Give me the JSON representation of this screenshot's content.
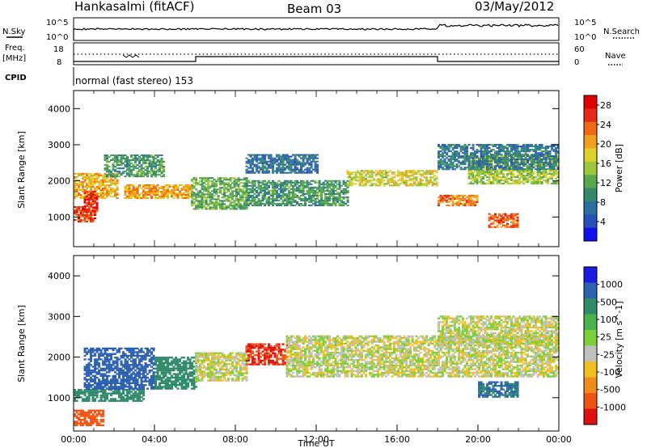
{
  "header": {
    "station": "Hankasalmi (fitACF)",
    "beam": "Beam 03",
    "date": "03/May/2012"
  },
  "status_panels": {
    "nsky_label": "N.Sky",
    "nsearch_label": "N.Search",
    "left_ticks": [
      "10^5",
      "10^0"
    ],
    "right_ticks": [
      "10^5",
      "10^0"
    ],
    "freq_label": "Freq.",
    "freq_unit": "[MHz]",
    "freq_ticks": [
      "18",
      "8"
    ],
    "nave_label": "Nave",
    "nave_ticks": [
      "60",
      "0"
    ],
    "cpid_label": "CPID",
    "cpid_text": "normal (fast stereo) 153"
  },
  "chart_data": [
    {
      "type": "heatmap",
      "name": "power",
      "ylabel": "Slant Range [km]",
      "xlabel": "",
      "ylim": [
        180,
        4500
      ],
      "xlim": [
        0,
        24
      ],
      "yticks": [
        "1000",
        "2000",
        "3000",
        "4000"
      ],
      "colorbar": {
        "label": "Power [dB]",
        "ticks": [
          "4",
          "8",
          "12",
          "16",
          "20",
          "24",
          "28"
        ],
        "range": [
          0,
          30
        ],
        "colors": [
          "#1010f0",
          "#2850b8",
          "#2a6fa0",
          "#338a6a",
          "#5aa84c",
          "#9ec83a",
          "#e0d02a",
          "#f0a01e",
          "#f06a14",
          "#e82818",
          "#e00000"
        ]
      },
      "regions": [
        {
          "t0": 0.0,
          "t1": 1.0,
          "r0": 850,
          "r1": 1300,
          "value": 26
        },
        {
          "t0": 0.0,
          "t1": 2.2,
          "r0": 1500,
          "r1": 2200,
          "value": 20
        },
        {
          "t0": 0.5,
          "t1": 1.2,
          "r0": 1100,
          "r1": 1700,
          "value": 28
        },
        {
          "t0": 2.5,
          "t1": 5.8,
          "r0": 1500,
          "r1": 1900,
          "value": 21
        },
        {
          "t0": 5.8,
          "t1": 8.5,
          "r0": 1200,
          "r1": 2100,
          "value": 12
        },
        {
          "t0": 8.5,
          "t1": 13.5,
          "r0": 1300,
          "r1": 2000,
          "value": 10
        },
        {
          "t0": 13.5,
          "t1": 18.0,
          "r0": 1850,
          "r1": 2300,
          "value": 17
        },
        {
          "t0": 18.0,
          "t1": 20.0,
          "r0": 1300,
          "r1": 1600,
          "value": 23
        },
        {
          "t0": 19.5,
          "t1": 24.0,
          "r0": 1900,
          "r1": 2700,
          "value": 15
        },
        {
          "t0": 20.5,
          "t1": 22.0,
          "r0": 700,
          "r1": 1100,
          "value": 25
        },
        {
          "t0": 18.0,
          "t1": 24.0,
          "r0": 2300,
          "r1": 3000,
          "value": 7
        },
        {
          "t0": 1.5,
          "t1": 4.5,
          "r0": 2100,
          "r1": 2700,
          "value": 10
        },
        {
          "t0": 8.5,
          "t1": 12.0,
          "r0": 2200,
          "r1": 2700,
          "value": 6
        }
      ]
    },
    {
      "type": "heatmap",
      "name": "velocity",
      "ylabel": "Slant Range [km]",
      "xlabel": "Time UT",
      "ylim": [
        180,
        4500
      ],
      "xlim": [
        0,
        24
      ],
      "yticks": [
        "1000",
        "2000",
        "3000",
        "4000"
      ],
      "xticks": [
        "00:00",
        "04:00",
        "08:00",
        "12:00",
        "16:00",
        "20:00",
        "00:00"
      ],
      "colorbar": {
        "label": "Velocity [m s^-1]",
        "ticks": [
          "1000",
          "500",
          "100",
          "25",
          "-25",
          "-100",
          "-500",
          "-1000"
        ],
        "colors": [
          "#1a1ae0",
          "#2c60b0",
          "#2f8a6a",
          "#4ab24a",
          "#7cd038",
          "#c0c0c0",
          "#f0c020",
          "#f08c18",
          "#f05414",
          "#e01010"
        ]
      },
      "regions": [
        {
          "t0": 0.0,
          "t1": 3.5,
          "r0": 900,
          "r1": 1200,
          "value": 150
        },
        {
          "t0": 0.5,
          "t1": 4.0,
          "r0": 1200,
          "r1": 2200,
          "value": 450
        },
        {
          "t0": 4.0,
          "t1": 6.0,
          "r0": 1200,
          "r1": 2000,
          "value": 200
        },
        {
          "t0": 6.0,
          "t1": 8.5,
          "r0": 1400,
          "r1": 2100,
          "value": 0
        },
        {
          "t0": 8.5,
          "t1": 10.5,
          "r0": 1800,
          "r1": 2300,
          "value": -300
        },
        {
          "t0": 10.5,
          "t1": 24.0,
          "r0": 1500,
          "r1": 2500,
          "value": 0
        },
        {
          "t0": 18.0,
          "t1": 24.0,
          "r0": 2300,
          "r1": 3000,
          "value": 0
        },
        {
          "t0": 20.0,
          "t1": 22.0,
          "r0": 1000,
          "r1": 1400,
          "value": 300
        },
        {
          "t0": 0.0,
          "t1": 1.5,
          "r0": 300,
          "r1": 700,
          "value": -150
        }
      ]
    }
  ]
}
